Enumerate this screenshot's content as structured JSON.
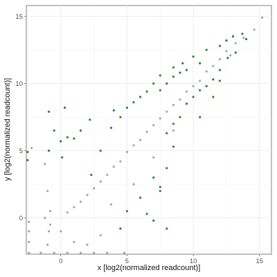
{
  "chart_data": {
    "type": "scatter",
    "xlabel": "x [log2(normalized readcount)]",
    "ylabel": "y [log2(normalized readcount)]",
    "xlim": [
      -2.6,
      15.9
    ],
    "ylim": [
      -2.7,
      15.8
    ],
    "xticks": [
      0,
      5,
      10,
      15
    ],
    "yticks": [
      0,
      5,
      10,
      15
    ],
    "grid": true,
    "legend": "none",
    "series": [
      {
        "color": "#a6a6a6",
        "points": [
          [
            15.2,
            14.9
          ],
          [
            14.6,
            14.0
          ],
          [
            13.8,
            13.4
          ],
          [
            13.2,
            13.0
          ],
          [
            12.8,
            12.1
          ],
          [
            12.5,
            12.4
          ],
          [
            12.0,
            11.8
          ],
          [
            11.5,
            11.3
          ],
          [
            11.0,
            10.9
          ],
          [
            10.5,
            10.2
          ],
          [
            10.0,
            9.8
          ],
          [
            9.5,
            9.4
          ],
          [
            9.0,
            8.8
          ],
          [
            8.5,
            8.4
          ],
          [
            8.0,
            7.9
          ],
          [
            7.5,
            7.4
          ],
          [
            7.0,
            6.9
          ],
          [
            6.5,
            6.4
          ],
          [
            6.0,
            5.8
          ],
          [
            5.5,
            5.4
          ],
          [
            5.0,
            4.9
          ],
          [
            4.5,
            4.2
          ],
          [
            4.0,
            3.8
          ],
          [
            3.5,
            3.2
          ],
          [
            3.0,
            2.7
          ],
          [
            2.5,
            2.2
          ],
          [
            2.0,
            1.7
          ],
          [
            1.5,
            1.2
          ],
          [
            1.0,
            0.8
          ],
          [
            0.5,
            0.4
          ],
          [
            -1.2,
            4.0
          ],
          [
            -1.0,
            2.0
          ],
          [
            -0.8,
            0.5
          ],
          [
            -0.9,
            -1.0
          ],
          [
            -1.0,
            -2.0
          ],
          [
            -2.4,
            -0.3
          ],
          [
            -2.4,
            -1.0
          ],
          [
            -2.4,
            -1.8
          ],
          [
            -2.4,
            -2.6
          ],
          [
            -1.5,
            -2.6
          ],
          [
            -0.5,
            -2.6
          ],
          [
            0.5,
            -2.6
          ],
          [
            1.5,
            -2.6
          ],
          [
            2.5,
            -2.6
          ],
          [
            3.5,
            -2.6
          ],
          [
            4.8,
            -2.6
          ],
          [
            -2.2,
            5.2
          ],
          [
            -1.2,
            0.0
          ],
          [
            -0.8,
            -0.5
          ],
          [
            0.0,
            -1.0
          ],
          [
            1.0,
            -1.8
          ],
          [
            2.0,
            -2.0
          ],
          [
            3.0,
            -1.3
          ],
          [
            3.8,
            1.0
          ],
          [
            5.5,
            2.5
          ],
          [
            7.0,
            4.5
          ],
          [
            8.5,
            6.5
          ]
        ]
      },
      {
        "color": "#228b22",
        "points": [
          [
            -0.9,
            7.9
          ],
          [
            0.3,
            8.2
          ],
          [
            2.2,
            7.3
          ],
          [
            1.5,
            6.5
          ],
          [
            0.5,
            6.0
          ],
          [
            -0.5,
            6.5
          ],
          [
            0.0,
            5.7
          ],
          [
            1.0,
            5.9
          ],
          [
            -0.9,
            5.0
          ],
          [
            0.1,
            4.5
          ],
          [
            -2.5,
            4.9
          ],
          [
            -2.5,
            4.3
          ],
          [
            4.0,
            8.0
          ],
          [
            6.0,
            9.0
          ],
          [
            7.0,
            10.0
          ],
          [
            7.5,
            9.5
          ],
          [
            8.0,
            10.0
          ],
          [
            8.5,
            10.5
          ],
          [
            9.0,
            10.8
          ],
          [
            9.5,
            11.0
          ],
          [
            10.5,
            11.5
          ],
          [
            11.0,
            12.5
          ],
          [
            12.0,
            12.8
          ],
          [
            12.5,
            13.2
          ],
          [
            13.0,
            13.5
          ],
          [
            13.7,
            13.7
          ],
          [
            14.0,
            13.3
          ],
          [
            13.2,
            12.3
          ],
          [
            12.6,
            11.9
          ],
          [
            12.0,
            11.0
          ],
          [
            11.5,
            10.3
          ],
          [
            11.0,
            9.8
          ],
          [
            10.5,
            9.5
          ],
          [
            10.0,
            9.0
          ],
          [
            9.5,
            8.5
          ],
          [
            9.0,
            7.5
          ],
          [
            8.5,
            7.0
          ],
          [
            8.0,
            6.3
          ],
          [
            8.5,
            5.3
          ],
          [
            8.0,
            3.7
          ],
          [
            7.5,
            2.3
          ],
          [
            7.5,
            2.0
          ],
          [
            6.5,
            0.3
          ],
          [
            8.0,
            -0.8
          ],
          [
            7.0,
            -0.2
          ],
          [
            4.5,
            -0.8
          ],
          [
            5.0,
            0.5
          ],
          [
            6.0,
            1.5
          ],
          [
            7.0,
            3.0
          ],
          [
            10.5,
            7.5
          ],
          [
            11.5,
            9.0
          ],
          [
            12.0,
            10.2
          ],
          [
            2.3,
            3.2
          ],
          [
            3.0,
            5.0
          ],
          [
            3.8,
            6.7
          ],
          [
            4.5,
            7.5
          ],
          [
            5.0,
            8.2
          ],
          [
            5.5,
            8.6
          ],
          [
            6.5,
            9.4
          ],
          [
            7.5,
            10.6
          ],
          [
            8.5,
            11.2
          ],
          [
            9.2,
            11.5
          ],
          [
            10.0,
            12.0
          ]
        ]
      }
    ]
  }
}
